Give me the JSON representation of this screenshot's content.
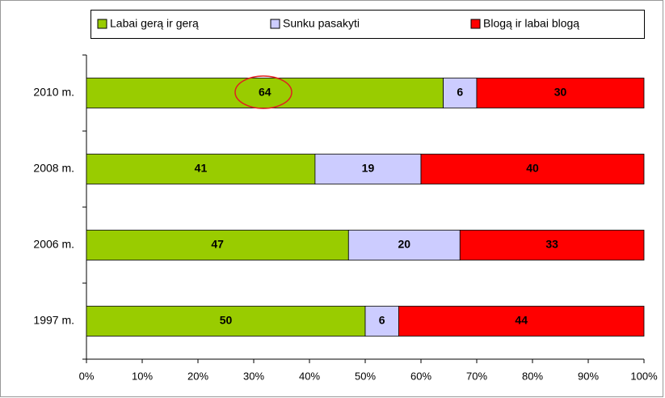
{
  "chart_data": {
    "type": "stacked_bar_horizontal",
    "categories": [
      "2010 m.",
      "2008 m.",
      "2006 m.",
      "1997 m."
    ],
    "series": [
      {
        "name": "Labai gerą ir gerą",
        "color": "#99cc00",
        "values": [
          64,
          41,
          47,
          50
        ]
      },
      {
        "name": "Sunku pasakyti",
        "color": "#ccccff",
        "values": [
          6,
          19,
          20,
          6
        ]
      },
      {
        "name": "Blogą ir labai blogą",
        "color": "#ff0000",
        "values": [
          30,
          40,
          33,
          44
        ]
      }
    ],
    "xlim": [
      0,
      100
    ],
    "xticks": [
      {
        "value": 0,
        "label": "0%"
      },
      {
        "value": 10,
        "label": "10%"
      },
      {
        "value": 20,
        "label": "20%"
      },
      {
        "value": 30,
        "label": "30%"
      },
      {
        "value": 40,
        "label": "40%"
      },
      {
        "value": 50,
        "label": "50%"
      },
      {
        "value": 60,
        "label": "60%"
      },
      {
        "value": 70,
        "label": "70%"
      },
      {
        "value": 80,
        "label": "80%"
      },
      {
        "value": 90,
        "label": "90%"
      },
      {
        "value": 100,
        "label": "100%"
      }
    ],
    "legend": "top"
  }
}
